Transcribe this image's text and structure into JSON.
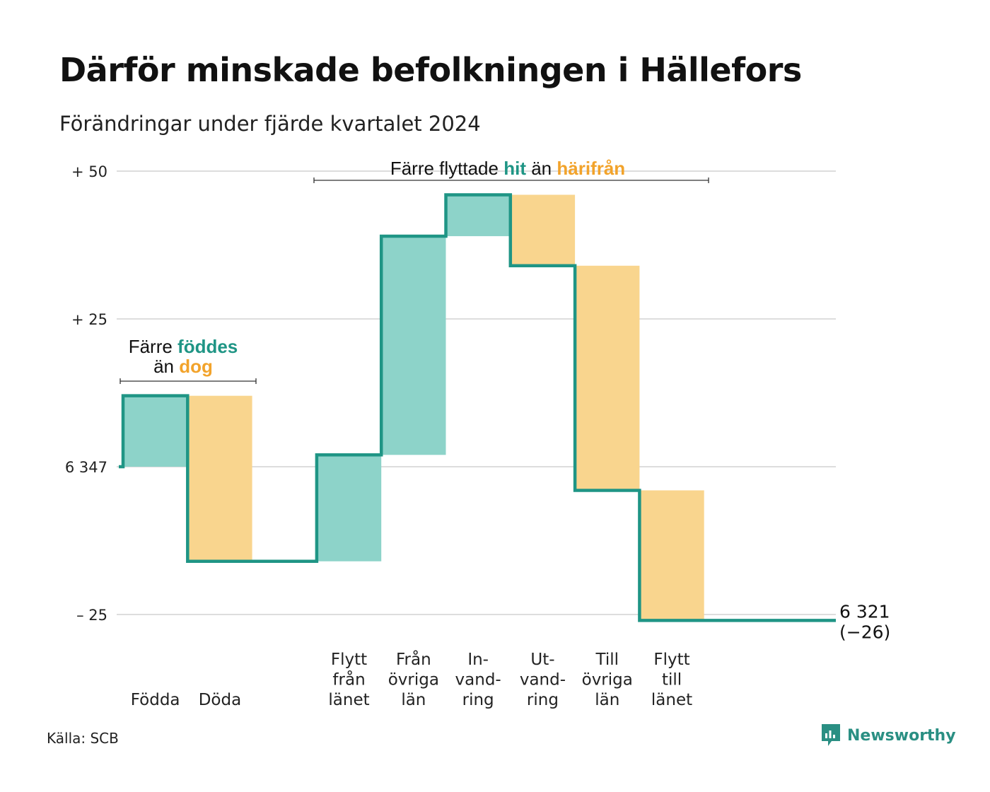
{
  "title": "Därför minskade befolkningen i Hällefors",
  "subtitle": "Förändringar under fjärde kvartalet 2024",
  "source": "Källa: SCB",
  "brand": {
    "name": "Newsworthy",
    "icon": "newsworthy-logo-icon"
  },
  "colors": {
    "increase": "#8dd3c9",
    "decrease": "#f9d58e",
    "line": "#1f9585",
    "highlight_hit": "#1f9585",
    "highlight_away": "#f2a32b",
    "grid": "#dddddd"
  },
  "annotations": {
    "births": {
      "prefix": "Färre",
      "hit": "föddes",
      "mid": "än",
      "away": "dog"
    },
    "moves": {
      "prefix": "Färre flyttade",
      "hit": "hit",
      "mid": "än",
      "away": "härifrån"
    }
  },
  "chart_data": {
    "type": "waterfall",
    "title": "Därför minskade befolkningen i Hällefors",
    "subtitle": "Förändringar under fjärde kvartalet 2024",
    "start_value": 6347,
    "end_value": 6321,
    "end_label": "6 321",
    "end_change_label": "(−26)",
    "ylim": [
      -25,
      50
    ],
    "y_ticks": [
      {
        "value": 50,
        "label": "+ 50"
      },
      {
        "value": 25,
        "label": "+ 25"
      },
      {
        "value": 0,
        "label": "6 347"
      },
      {
        "value": -25,
        "label": "– 25"
      }
    ],
    "grid": true,
    "steps": [
      {
        "label": [
          "",
          "",
          "Födda"
        ],
        "change": 12
      },
      {
        "label": [
          "",
          "",
          "Döda"
        ],
        "change": -28
      },
      {
        "label": [
          "",
          "",
          ""
        ],
        "change": 0
      },
      {
        "label": [
          "Flytt",
          "från",
          "länet"
        ],
        "change": 18
      },
      {
        "label": [
          "Från",
          "övriga",
          "län"
        ],
        "change": 37
      },
      {
        "label": [
          "In-",
          "vand-",
          "ring"
        ],
        "change": 7
      },
      {
        "label": [
          "Ut-",
          "vand-",
          "ring"
        ],
        "change": -12
      },
      {
        "label": [
          "Till",
          "övriga",
          "län"
        ],
        "change": -38
      },
      {
        "label": [
          "Flytt",
          "till",
          "länet"
        ],
        "change": -22
      },
      {
        "label": [
          "",
          "",
          ""
        ],
        "change": 0
      }
    ]
  }
}
